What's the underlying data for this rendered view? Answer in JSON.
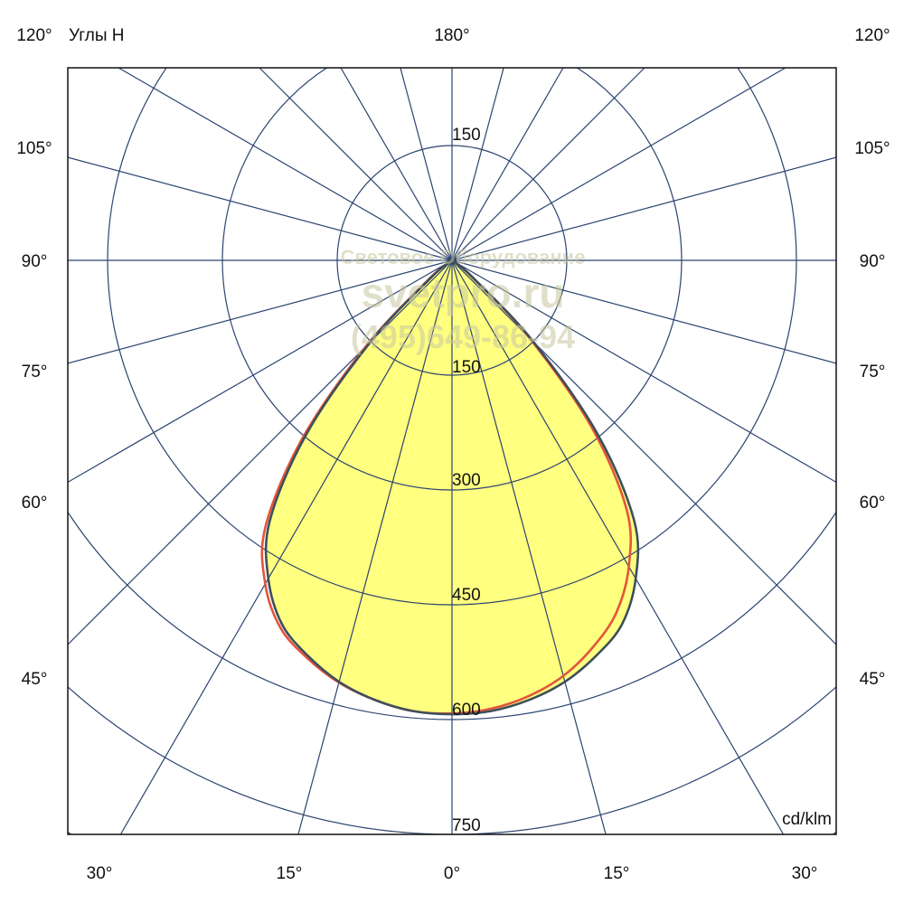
{
  "chart_data": {
    "type": "polar",
    "title": "Углы H",
    "unit_label": "cd/klm",
    "radial_ticks": [
      150,
      300,
      450,
      600,
      750
    ],
    "radial_tick_labels": {
      "top": "150",
      "bottom": [
        "150",
        "300",
        "450",
        "600",
        "750"
      ]
    },
    "radial_range": [
      0,
      900
    ],
    "angle_step_deg": 15,
    "grid": true,
    "angle_labels": {
      "top": "180°",
      "left": [
        "120°",
        "105°",
        "90°",
        "75°",
        "60°",
        "45°"
      ],
      "right": [
        "120°",
        "105°",
        "90°",
        "75°",
        "60°",
        "45°"
      ],
      "bottom": [
        "30°",
        "15°",
        "0°",
        "15°",
        "30°"
      ]
    },
    "angles": [
      -90,
      -85,
      -80,
      -75,
      -70,
      -65,
      -60,
      -55,
      -50,
      -45,
      -40,
      -35,
      -30,
      -25,
      -20,
      -15,
      -10,
      -5,
      0,
      5,
      10,
      15,
      20,
      25,
      30,
      35,
      40,
      45,
      50,
      55,
      60,
      65,
      70,
      75,
      80,
      85,
      90
    ],
    "series": [
      {
        "color": "#3d4f5c",
        "fill": "#ffff80",
        "values": [
          0,
          0,
          0,
          0,
          0,
          0,
          0,
          10,
          40,
          150,
          295,
          415,
          480,
          525,
          550,
          570,
          583,
          591,
          593,
          591,
          583,
          570,
          550,
          525,
          480,
          415,
          295,
          150,
          40,
          10,
          0,
          0,
          0,
          0,
          0,
          0,
          0
        ]
      },
      {
        "color": "#e2553c",
        "values": [
          0,
          0,
          0,
          0,
          0,
          0,
          0,
          12,
          46,
          160,
          305,
          425,
          488,
          530,
          553,
          571,
          583,
          591,
          592,
          588,
          578,
          562,
          538,
          508,
          462,
          398,
          282,
          142,
          36,
          8,
          0,
          0,
          0,
          0,
          0,
          0,
          0
        ]
      }
    ]
  },
  "watermark": {
    "line1": "Световое Оборудование",
    "line2": "svetpro.ru",
    "line3": "(495)649-86-94"
  },
  "colors": {
    "grid": "#2b4470",
    "frame": "#111111"
  }
}
